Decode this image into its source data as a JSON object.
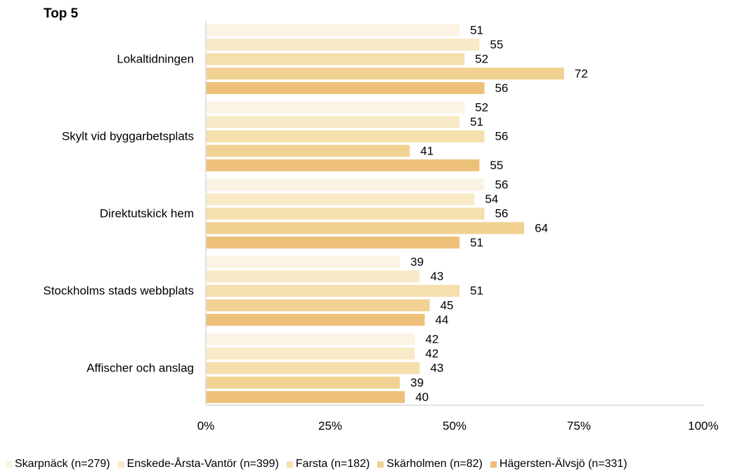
{
  "chart_data": {
    "type": "bar",
    "orientation": "horizontal",
    "title": "Top 5",
    "categories": [
      "Lokaltidningen",
      "Skylt vid byggarbetsplats",
      "Direktutskick hem",
      "Stockholms stads webbplats",
      "Affischer och anslag"
    ],
    "series": [
      {
        "name": "Skarpnäck (n=279)",
        "color": "#FBF3E3",
        "values": [
          51,
          52,
          56,
          39,
          42
        ]
      },
      {
        "name": "Enskede-Årsta-Vantör (n=399)",
        "color": "#F8EAC7",
        "values": [
          55,
          51,
          54,
          43,
          42
        ]
      },
      {
        "name": "Farsta (n=182)",
        "color": "#F5DFAD",
        "values": [
          52,
          56,
          56,
          51,
          43
        ]
      },
      {
        "name": "Skärholmen (n=82)",
        "color": "#F1D292",
        "values": [
          72,
          41,
          64,
          45,
          39
        ]
      },
      {
        "name": "Hägersten-Älvsjö (n=331)",
        "color": "#EDC07A",
        "values": [
          56,
          55,
          51,
          44,
          40
        ]
      }
    ],
    "xlim": [
      0,
      100
    ],
    "xticks": [
      "0%",
      "25%",
      "50%",
      "75%",
      "100%"
    ],
    "grid": false,
    "legend_position": "bottom"
  }
}
